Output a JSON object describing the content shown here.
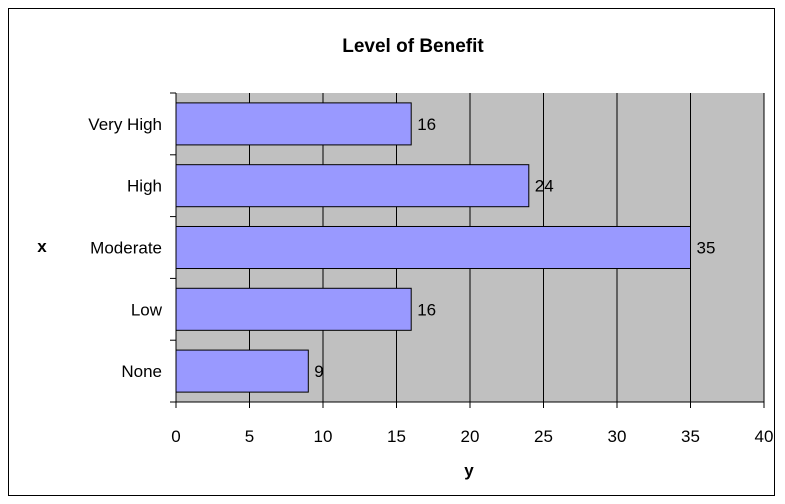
{
  "chart_data": {
    "type": "bar",
    "orientation": "horizontal",
    "title": "Level of Benefit",
    "xlabel": "y",
    "ylabel": "x",
    "categories": [
      "None",
      "Low",
      "Moderate",
      "High",
      "Very High"
    ],
    "values": [
      9,
      16,
      35,
      24,
      16
    ],
    "xlim": [
      0,
      40
    ],
    "xticks": [
      0,
      5,
      10,
      15,
      20,
      25,
      30,
      35,
      40
    ],
    "grid": true,
    "legend": "none",
    "colors": {
      "bar_fill": "#9999ff",
      "bar_stroke": "#000000",
      "plot_background": "#c0c0c0",
      "gridline": "#000000"
    }
  }
}
